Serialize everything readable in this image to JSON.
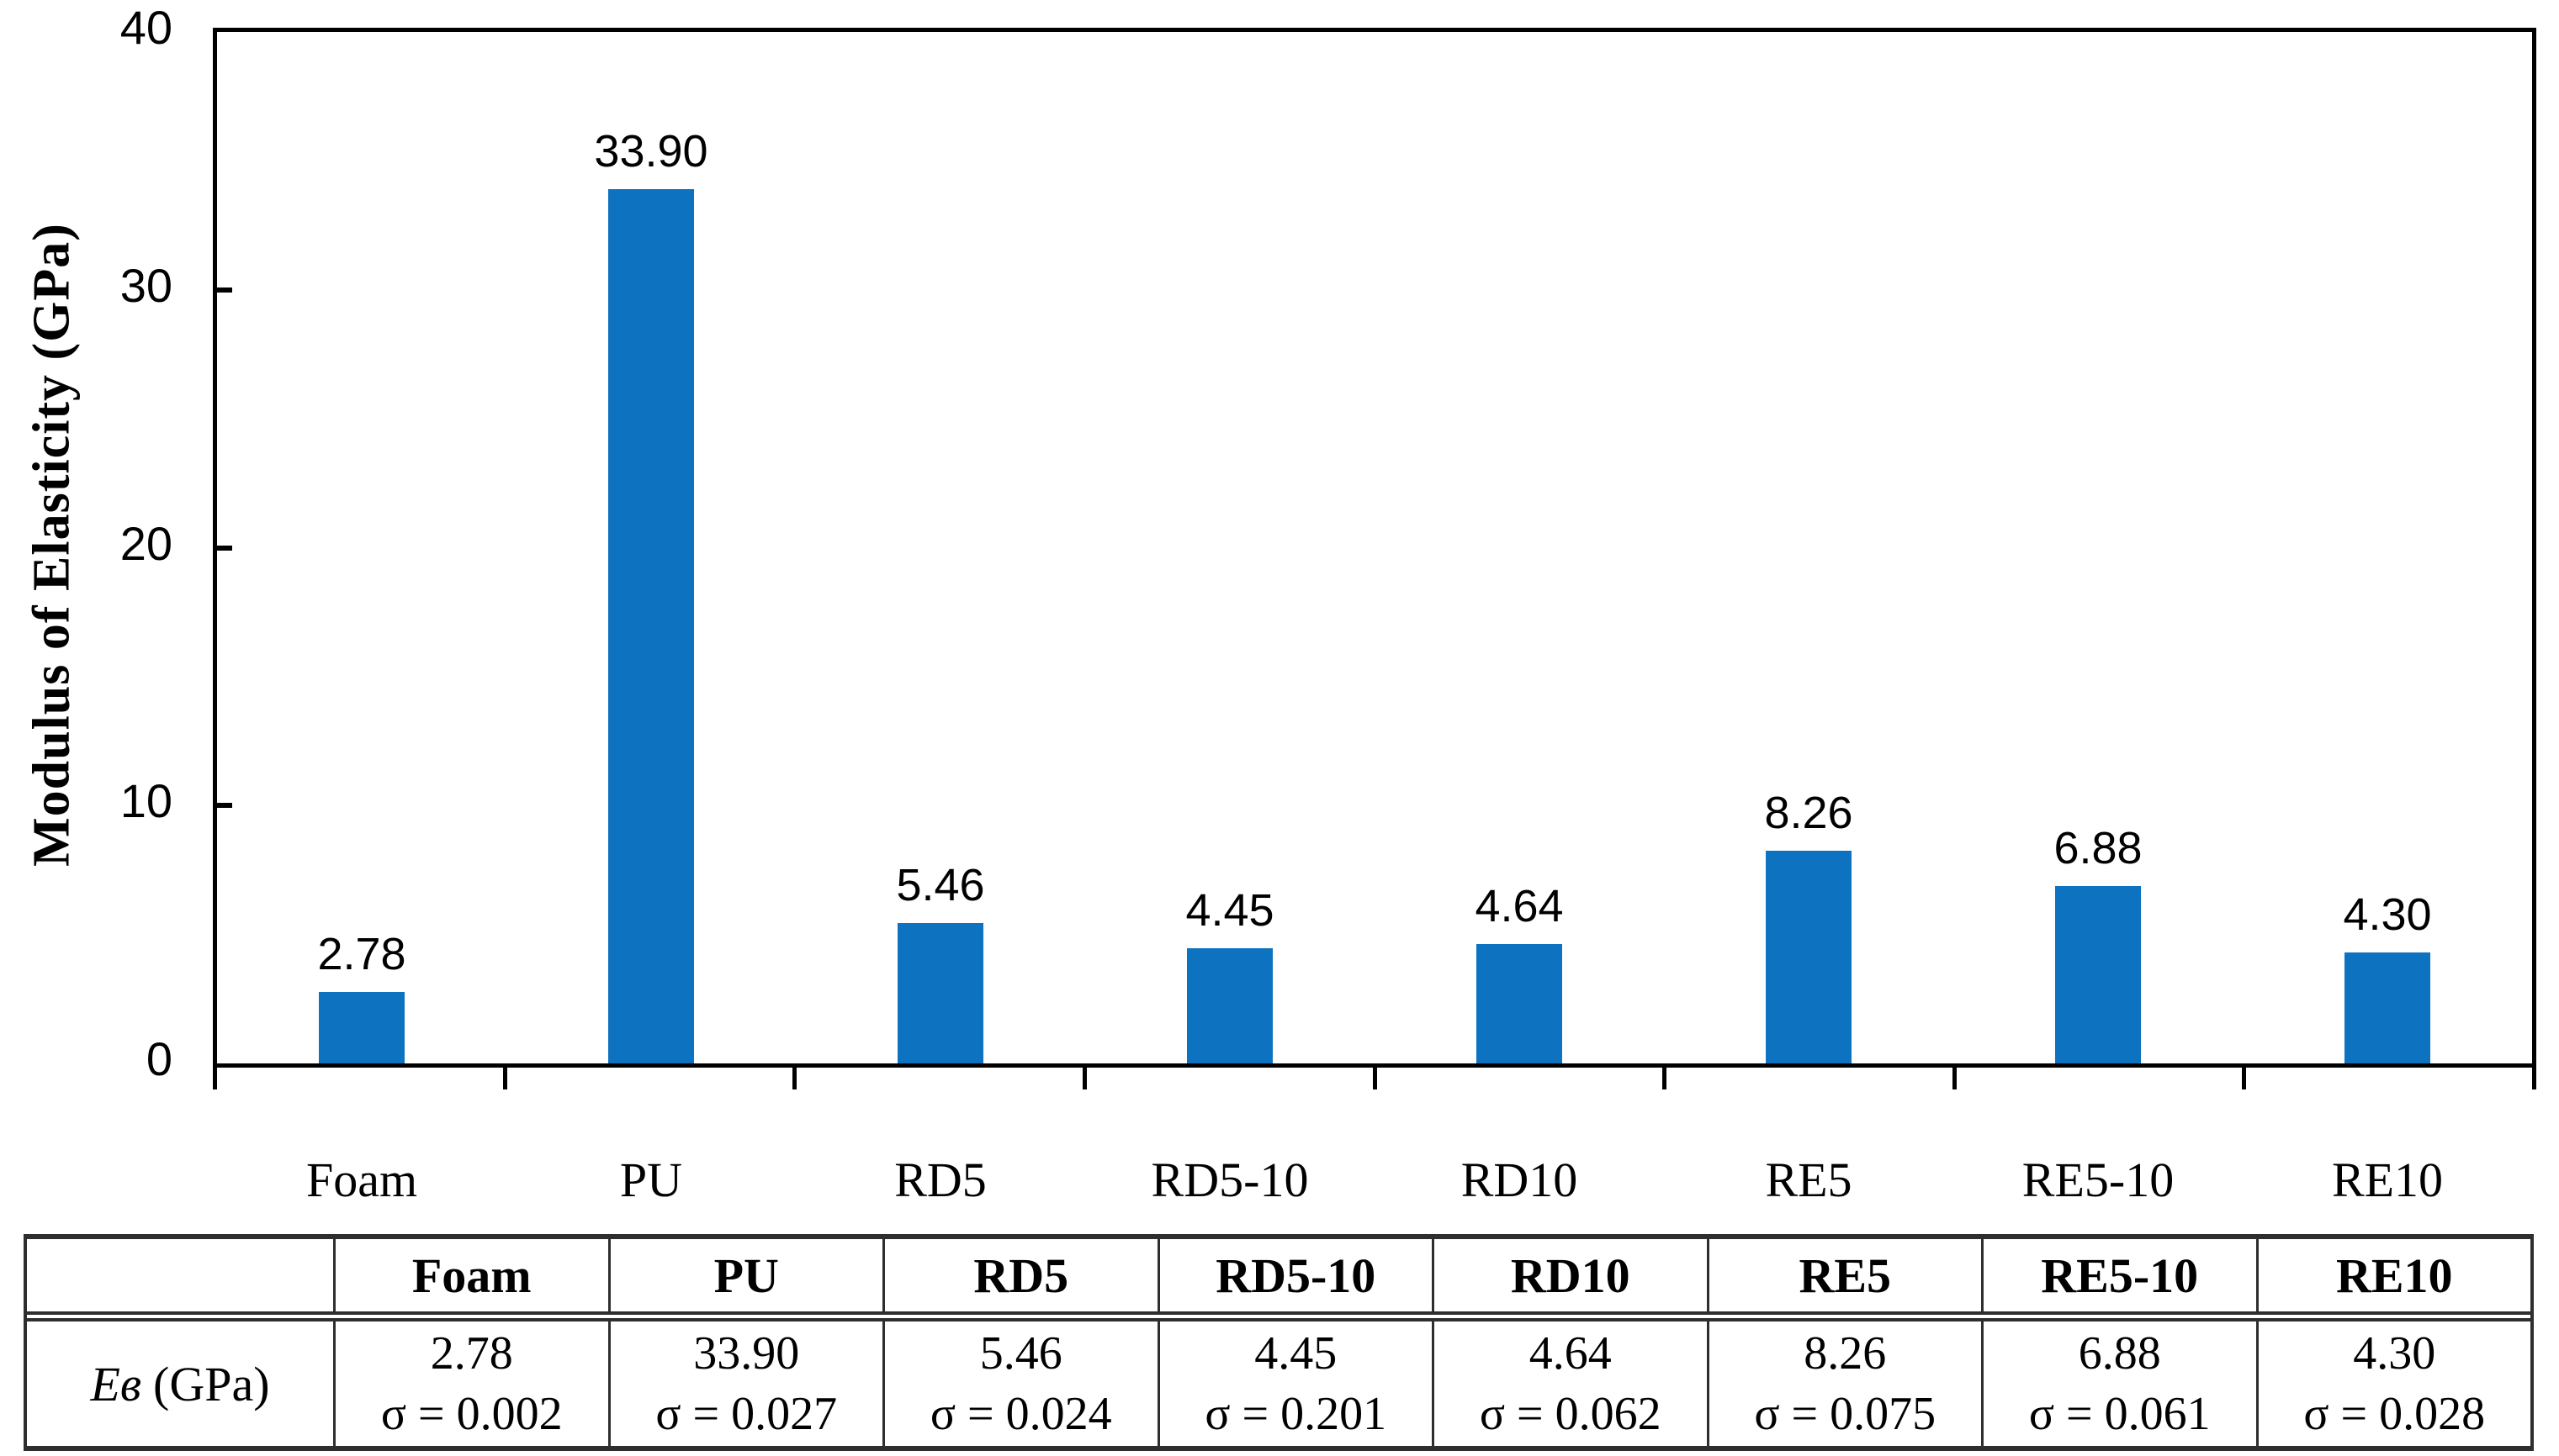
{
  "chart_data": {
    "type": "bar",
    "title": "",
    "categories": [
      "Foam",
      "PU",
      "RD5",
      "RD5-10",
      "RD10",
      "RE5",
      "RE5-10",
      "RE10"
    ],
    "values": [
      2.78,
      33.9,
      5.46,
      4.45,
      4.64,
      8.26,
      6.88,
      4.3
    ],
    "data_labels": [
      "2.78",
      "33.90",
      "5.46",
      "4.45",
      "4.64",
      "8.26",
      "6.88",
      "4.30"
    ],
    "xlabel": "",
    "ylabel": "Modulus of Elasticity (GPa)",
    "ylim": [
      0,
      40
    ],
    "yticks": [
      0,
      10,
      20,
      30,
      40
    ],
    "ytick_labels": [
      "0",
      "10",
      "20",
      "30",
      "40"
    ],
    "bar_color": "#0d72bf",
    "axis_color": "#000000",
    "grid": false,
    "legend": false,
    "sigma": [
      0.002,
      0.027,
      0.024,
      0.201,
      0.062,
      0.075,
      0.061,
      0.028
    ]
  },
  "table": {
    "columns": [
      "Foam",
      "PU",
      "RD5",
      "RD5-10",
      "RD10",
      "RE5",
      "RE5-10",
      "RE10"
    ],
    "row_label_symbol": "Eв",
    "row_label_unit": "(GPa)",
    "values": [
      "2.78",
      "33.90",
      "5.46",
      "4.45",
      "4.64",
      "8.26",
      "6.88",
      "4.30"
    ],
    "sigmas": [
      "σ = 0.002",
      "σ = 0.027",
      "σ = 0.024",
      "σ = 0.201",
      "σ = 0.062",
      "σ = 0.075",
      "σ = 0.061",
      "σ = 0.028"
    ]
  }
}
